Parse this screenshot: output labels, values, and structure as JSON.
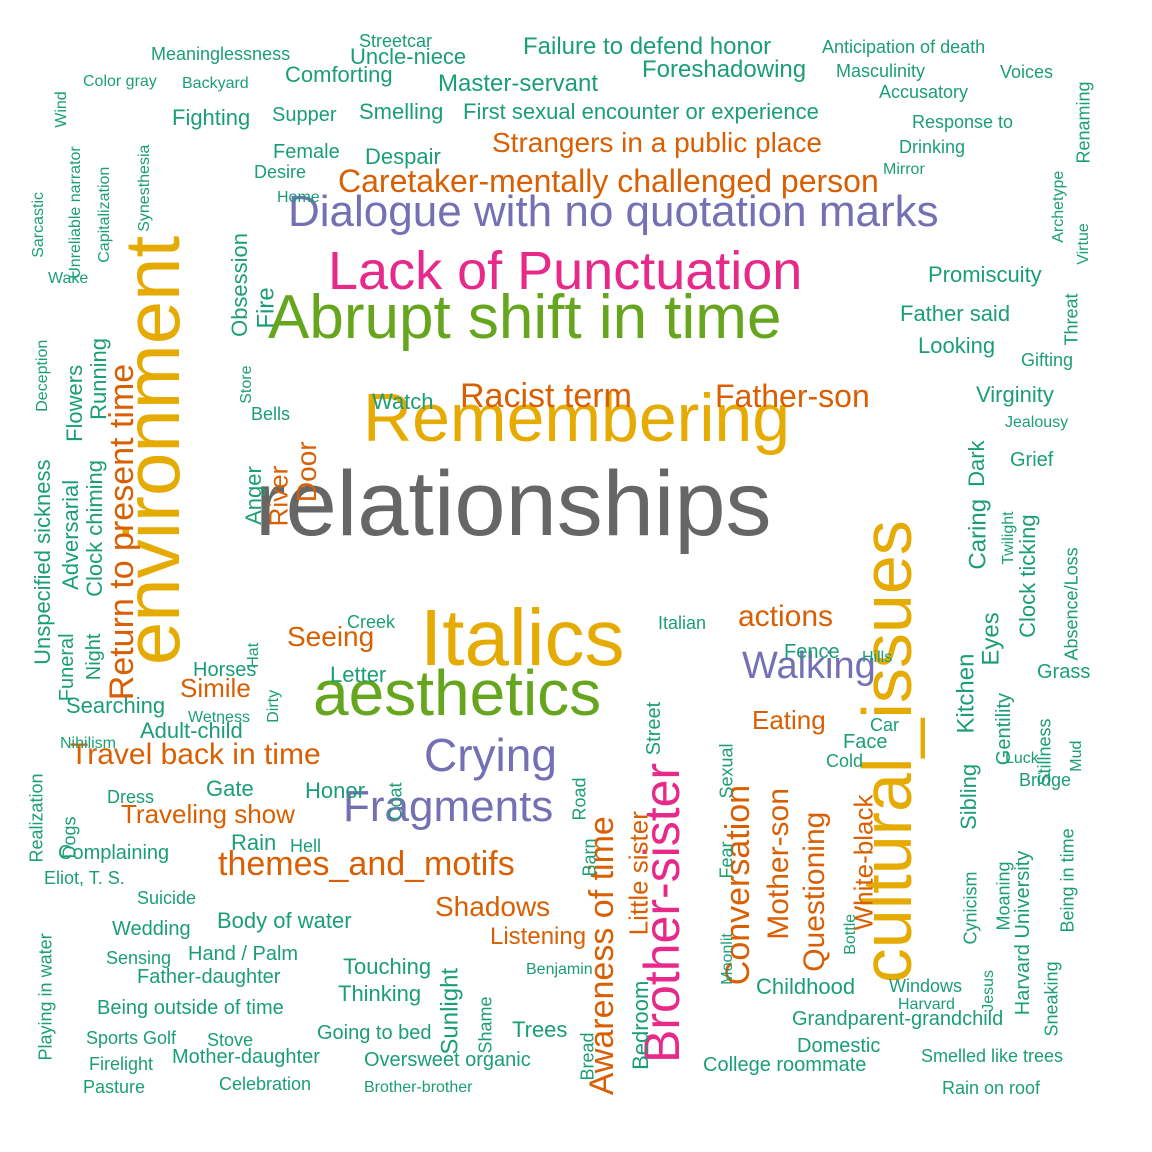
{
  "colors": {
    "teal": "#1b9e77",
    "orange": "#d95f02",
    "purple": "#7570b3",
    "magenta": "#e7298a",
    "green": "#66a61e",
    "gold": "#e6ab02",
    "gray": "#666666"
  },
  "words": [
    {
      "text": "relationships",
      "color": "gray",
      "size": "xxl"
    },
    {
      "text": "environment",
      "color": "gold",
      "size": "xl"
    },
    {
      "text": "cultural_issues",
      "color": "gold",
      "size": "xl"
    },
    {
      "text": "Remembering",
      "color": "gold",
      "size": "xl"
    },
    {
      "text": "Italics",
      "color": "gold",
      "size": "xl"
    },
    {
      "text": "aesthetics",
      "color": "green",
      "size": "xl"
    },
    {
      "text": "Abrupt shift in time",
      "color": "green",
      "size": "l"
    },
    {
      "text": "Lack of Punctuation",
      "color": "magenta",
      "size": "l"
    },
    {
      "text": "Brother-sister",
      "color": "magenta",
      "size": "l"
    },
    {
      "text": "Dialogue with no quotation marks",
      "color": "purple",
      "size": "m"
    },
    {
      "text": "Crying",
      "color": "purple",
      "size": "m"
    },
    {
      "text": "Fragments",
      "color": "purple",
      "size": "m"
    },
    {
      "text": "Walking",
      "color": "purple",
      "size": "m"
    },
    {
      "text": "Caretaker-mentally challenged person",
      "color": "orange",
      "size": "m"
    },
    {
      "text": "Return to present time",
      "color": "orange",
      "size": "m"
    },
    {
      "text": "Awareness of time",
      "color": "orange",
      "size": "m"
    },
    {
      "text": "themes_and_motifs",
      "color": "orange",
      "size": "m"
    },
    {
      "text": "Racist term",
      "color": "orange",
      "size": "m"
    },
    {
      "text": "Father-son",
      "color": "orange",
      "size": "m"
    },
    {
      "text": "Conversation",
      "color": "orange",
      "size": "m"
    },
    {
      "text": "Travel back in time",
      "color": "orange",
      "size": "m"
    },
    {
      "text": "actions",
      "color": "orange",
      "size": "m"
    },
    {
      "text": "Strangers in a public place",
      "color": "orange",
      "size": "s"
    },
    {
      "text": "Mother-son",
      "color": "orange",
      "size": "s"
    },
    {
      "text": "Questioning",
      "color": "orange",
      "size": "s"
    },
    {
      "text": "Little sister",
      "color": "orange",
      "size": "s"
    },
    {
      "text": "White-black",
      "color": "orange",
      "size": "s"
    },
    {
      "text": "Seeing",
      "color": "orange",
      "size": "s"
    },
    {
      "text": "Traveling show",
      "color": "orange",
      "size": "s"
    },
    {
      "text": "Shadows",
      "color": "orange",
      "size": "s"
    },
    {
      "text": "Listening",
      "color": "orange",
      "size": "s"
    },
    {
      "text": "Eating",
      "color": "orange",
      "size": "s"
    },
    {
      "text": "Simile",
      "color": "orange",
      "size": "s"
    },
    {
      "text": "Door",
      "color": "orange",
      "size": "s"
    },
    {
      "text": "River",
      "color": "orange",
      "size": "s"
    },
    {
      "text": "Failure to defend honor",
      "color": "teal",
      "size": "s"
    },
    {
      "text": "Foreshadowing",
      "color": "teal",
      "size": "s"
    },
    {
      "text": "First sexual encounter or experience",
      "color": "teal",
      "size": "s"
    },
    {
      "text": "Master-servant",
      "color": "teal",
      "size": "s"
    },
    {
      "text": "Promiscuity",
      "color": "teal",
      "size": "s"
    },
    {
      "text": "Father said",
      "color": "teal",
      "size": "s"
    },
    {
      "text": "Looking",
      "color": "teal",
      "size": "s"
    },
    {
      "text": "Virginity",
      "color": "teal",
      "size": "s"
    },
    {
      "text": "Watch",
      "color": "teal",
      "size": "s"
    },
    {
      "text": "Despair",
      "color": "teal",
      "size": "s"
    },
    {
      "text": "Comforting",
      "color": "teal",
      "size": "s"
    },
    {
      "text": "Smelling",
      "color": "teal",
      "size": "s"
    },
    {
      "text": "Uncle-niece",
      "color": "teal",
      "size": "s"
    },
    {
      "text": "Kitchen",
      "color": "teal",
      "size": "s"
    },
    {
      "text": "Caring",
      "color": "teal",
      "size": "s"
    },
    {
      "text": "Dark",
      "color": "teal",
      "size": "s"
    },
    {
      "text": "Eyes",
      "color": "teal",
      "size": "s"
    },
    {
      "text": "Grief",
      "color": "teal",
      "size": "s"
    },
    {
      "text": "Clock ticking",
      "color": "teal",
      "size": "s"
    },
    {
      "text": "Clock chiming",
      "color": "teal",
      "size": "s"
    },
    {
      "text": "Running",
      "color": "teal",
      "size": "s"
    },
    {
      "text": "Flowers",
      "color": "teal",
      "size": "s"
    },
    {
      "text": "Adversarial",
      "color": "teal",
      "size": "s"
    },
    {
      "text": "Unspecified sickness",
      "color": "teal",
      "size": "s"
    },
    {
      "text": "Obsession",
      "color": "teal",
      "size": "s"
    },
    {
      "text": "Fire",
      "color": "teal",
      "size": "s"
    },
    {
      "text": "Anger",
      "color": "teal",
      "size": "s"
    },
    {
      "text": "Body of water",
      "color": "teal",
      "size": "s"
    },
    {
      "text": "Adult-child",
      "color": "teal",
      "size": "s"
    },
    {
      "text": "Searching",
      "color": "teal",
      "size": "s"
    },
    {
      "text": "Honor",
      "color": "teal",
      "size": "s"
    },
    {
      "text": "Letter",
      "color": "teal",
      "size": "s"
    },
    {
      "text": "Gate",
      "color": "teal",
      "size": "s"
    },
    {
      "text": "Rain",
      "color": "teal",
      "size": "s"
    },
    {
      "text": "Touching",
      "color": "teal",
      "size": "s"
    },
    {
      "text": "Thinking",
      "color": "teal",
      "size": "s"
    },
    {
      "text": "Childhood",
      "color": "teal",
      "size": "s"
    },
    {
      "text": "Grandparent-grandchild",
      "color": "teal",
      "size": "s"
    },
    {
      "text": "College roommate",
      "color": "teal",
      "size": "s"
    },
    {
      "text": "Oversweet organic",
      "color": "teal",
      "size": "s"
    },
    {
      "text": "Trees",
      "color": "teal",
      "size": "s"
    },
    {
      "text": "Sunlight",
      "color": "teal",
      "size": "s"
    },
    {
      "text": "Bedroom",
      "color": "teal",
      "size": "s"
    },
    {
      "text": "Sibling",
      "color": "teal",
      "size": "s"
    },
    {
      "text": "Gentility",
      "color": "teal",
      "size": "s"
    },
    {
      "text": "Grass",
      "color": "teal",
      "size": "s"
    },
    {
      "text": "Fighting",
      "color": "teal",
      "size": "s"
    },
    {
      "text": "Supper",
      "color": "teal",
      "size": "s"
    },
    {
      "text": "Female",
      "color": "teal",
      "size": "s"
    },
    {
      "text": "Complaining",
      "color": "teal",
      "size": "s"
    },
    {
      "text": "Father-daughter",
      "color": "teal",
      "size": "s"
    },
    {
      "text": "Being outside of time",
      "color": "teal",
      "size": "s"
    },
    {
      "text": "Hand / Palm",
      "color": "teal",
      "size": "s"
    },
    {
      "text": "Going to bed",
      "color": "teal",
      "size": "s"
    },
    {
      "text": "Mother-daughter",
      "color": "teal",
      "size": "s"
    },
    {
      "text": "Wedding",
      "color": "teal",
      "size": "s"
    },
    {
      "text": "Horses",
      "color": "teal",
      "size": "s"
    },
    {
      "text": "Creek",
      "color": "teal",
      "size": "s"
    },
    {
      "text": "Italian",
      "color": "teal",
      "size": "s"
    },
    {
      "text": "Fence",
      "color": "teal",
      "size": "s"
    },
    {
      "text": "Face",
      "color": "teal",
      "size": "s"
    },
    {
      "text": "Cold",
      "color": "teal",
      "size": "s"
    },
    {
      "text": "Funeral",
      "color": "teal",
      "size": "s"
    },
    {
      "text": "Night",
      "color": "teal",
      "size": "s"
    },
    {
      "text": "Street",
      "color": "teal",
      "size": "s"
    },
    {
      "text": "Cynicism",
      "color": "teal",
      "size": "s"
    },
    {
      "text": "Harvard University",
      "color": "teal",
      "size": "s"
    },
    {
      "text": "Moaning",
      "color": "teal",
      "size": "s"
    },
    {
      "text": "Bridge",
      "color": "teal",
      "size": "s"
    },
    {
      "text": "Windows",
      "color": "teal",
      "size": "s"
    },
    {
      "text": "Domestic",
      "color": "teal",
      "size": "s"
    },
    {
      "text": "Smelled like trees",
      "color": "teal",
      "size": "s"
    },
    {
      "text": "Rain on roof",
      "color": "teal",
      "size": "s"
    },
    {
      "text": "Anticipation of death",
      "color": "teal",
      "size": "s"
    },
    {
      "text": "Masculinity",
      "color": "teal",
      "size": "s"
    },
    {
      "text": "Voices",
      "color": "teal",
      "size": "s"
    },
    {
      "text": "Accusatory",
      "color": "teal",
      "size": "s"
    },
    {
      "text": "Response to",
      "color": "teal",
      "size": "s"
    },
    {
      "text": "Drinking",
      "color": "teal",
      "size": "s"
    },
    {
      "text": "Mirror",
      "color": "teal",
      "size": "s"
    },
    {
      "text": "Meaninglessness",
      "color": "teal",
      "size": "s"
    },
    {
      "text": "Streetcar",
      "color": "teal",
      "size": "s"
    },
    {
      "text": "Color gray",
      "color": "teal",
      "size": "s"
    },
    {
      "text": "Backyard",
      "color": "teal",
      "size": "s"
    },
    {
      "text": "Wind",
      "color": "teal",
      "size": "s"
    },
    {
      "text": "Desire",
      "color": "teal",
      "size": "s"
    },
    {
      "text": "Home",
      "color": "teal",
      "size": "s"
    },
    {
      "text": "Store",
      "color": "teal",
      "size": "s"
    },
    {
      "text": "Bells",
      "color": "teal",
      "size": "s"
    },
    {
      "text": "Gifting",
      "color": "teal",
      "size": "s"
    },
    {
      "text": "Jealousy",
      "color": "teal",
      "size": "s"
    },
    {
      "text": "Twilight",
      "color": "teal",
      "size": "s"
    },
    {
      "text": "Absence/Loss",
      "color": "teal",
      "size": "s"
    },
    {
      "text": "Threat",
      "color": "teal",
      "size": "s"
    },
    {
      "text": "Archetype",
      "color": "teal",
      "size": "s"
    },
    {
      "text": "Virtue",
      "color": "teal",
      "size": "s"
    },
    {
      "text": "Renaming",
      "color": "teal",
      "size": "s"
    },
    {
      "text": "Hills",
      "color": "teal",
      "size": "s"
    },
    {
      "text": "Car",
      "color": "teal",
      "size": "s"
    },
    {
      "text": "Stillness",
      "color": "teal",
      "size": "s"
    },
    {
      "text": "Mud",
      "color": "teal",
      "size": "s"
    },
    {
      "text": "Luck",
      "color": "teal",
      "size": "s"
    },
    {
      "text": "Being in time",
      "color": "teal",
      "size": "s"
    },
    {
      "text": "Sneaking",
      "color": "teal",
      "size": "s"
    },
    {
      "text": "Jesus",
      "color": "teal",
      "size": "s"
    },
    {
      "text": "Harvard",
      "color": "teal",
      "size": "s"
    },
    {
      "text": "Fear",
      "color": "teal",
      "size": "s"
    },
    {
      "text": "Sexual",
      "color": "teal",
      "size": "s"
    },
    {
      "text": "Moonlit",
      "color": "teal",
      "size": "s"
    },
    {
      "text": "Bottle",
      "color": "teal",
      "size": "s"
    },
    {
      "text": "Benjamin",
      "color": "teal",
      "size": "s"
    },
    {
      "text": "Shame",
      "color": "teal",
      "size": "s"
    },
    {
      "text": "Bread",
      "color": "teal",
      "size": "s"
    },
    {
      "text": "Barn",
      "color": "teal",
      "size": "s"
    },
    {
      "text": "Road",
      "color": "teal",
      "size": "s"
    },
    {
      "text": "Coat",
      "color": "teal",
      "size": "s"
    },
    {
      "text": "Hell",
      "color": "teal",
      "size": "s"
    },
    {
      "text": "Dress",
      "color": "teal",
      "size": "s"
    },
    {
      "text": "Dogs",
      "color": "teal",
      "size": "s"
    },
    {
      "text": "Realization",
      "color": "teal",
      "size": "s"
    },
    {
      "text": "Eliot, T. S.",
      "color": "teal",
      "size": "s"
    },
    {
      "text": "Suicide",
      "color": "teal",
      "size": "s"
    },
    {
      "text": "Sensing",
      "color": "teal",
      "size": "s"
    },
    {
      "text": "Playing in water",
      "color": "teal",
      "size": "s"
    },
    {
      "text": "Sports Golf",
      "color": "teal",
      "size": "s"
    },
    {
      "text": "Stove",
      "color": "teal",
      "size": "s"
    },
    {
      "text": "Firelight",
      "color": "teal",
      "size": "s"
    },
    {
      "text": "Pasture",
      "color": "teal",
      "size": "s"
    },
    {
      "text": "Celebration",
      "color": "teal",
      "size": "s"
    },
    {
      "text": "Brother-brother",
      "color": "teal",
      "size": "s"
    },
    {
      "text": "Nihilism",
      "color": "teal",
      "size": "s"
    },
    {
      "text": "Wetness",
      "color": "teal",
      "size": "s"
    },
    {
      "text": "Hat",
      "color": "teal",
      "size": "s"
    },
    {
      "text": "Dirty",
      "color": "teal",
      "size": "s"
    },
    {
      "text": "Deception",
      "color": "teal",
      "size": "s"
    },
    {
      "text": "Wake",
      "color": "teal",
      "size": "s"
    },
    {
      "text": "Sarcastic",
      "color": "teal",
      "size": "s"
    },
    {
      "text": "Unreliable narrator",
      "color": "teal",
      "size": "s"
    },
    {
      "text": "Capitalization",
      "color": "teal",
      "size": "s"
    },
    {
      "text": "Synesthesia",
      "color": "teal",
      "size": "s"
    }
  ]
}
